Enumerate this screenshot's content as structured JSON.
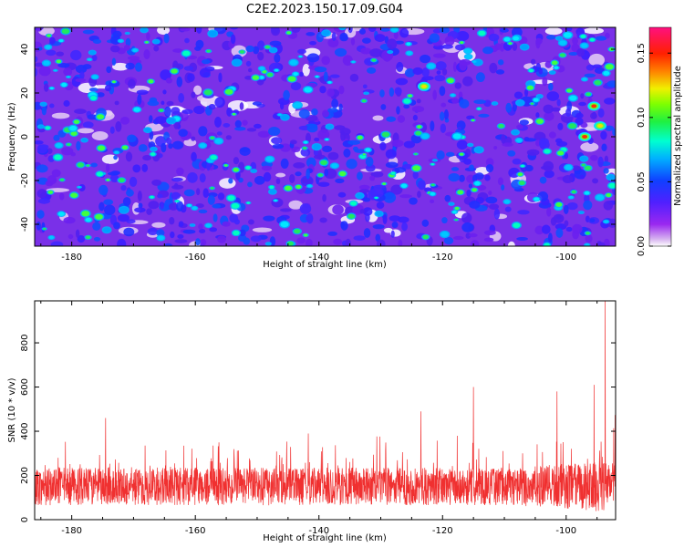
{
  "title": "C2E2.2023.150.17.09.G04",
  "chart_data": [
    {
      "type": "heatmap",
      "xlabel": "Height of straight line (km)",
      "ylabel": "Frequency (Hz)",
      "xlim": [
        -186,
        -92
      ],
      "ylim": [
        -50,
        50
      ],
      "xticks": [
        -180,
        -160,
        -140,
        -120,
        -100
      ],
      "yticks": [
        -40,
        -20,
        0,
        20,
        40
      ],
      "colorbar": {
        "label": "Normalized spectral amplitude",
        "range": [
          0.0,
          0.17
        ],
        "ticks": [
          "0.00",
          "0.05",
          "0.10",
          "0.15"
        ],
        "colormap": "rainbow (white-violet-blue-cyan-green-yellow-red-magenta)"
      },
      "hotspots": [
        {
          "x": -123,
          "y": 23,
          "value": 0.11
        },
        {
          "x": -95.5,
          "y": 14,
          "value": 0.15
        },
        {
          "x": -97,
          "y": 0,
          "value": 0.13
        },
        {
          "x": -94.5,
          "y": 5,
          "value": 0.11
        }
      ]
    },
    {
      "type": "line",
      "color": "#f03030",
      "xlabel": "Height of straight line (km)",
      "ylabel": "SNR (10 * v/v)",
      "xlim": [
        -186,
        -92
      ],
      "ylim": [
        0,
        990
      ],
      "xticks": [
        -180,
        -160,
        -140,
        -120,
        -100
      ],
      "yticks": [
        0,
        200,
        400,
        600,
        800
      ],
      "baseline_mean": 150,
      "spikes": [
        {
          "x": -174.5,
          "y": 460
        },
        {
          "x": -123.5,
          "y": 490
        },
        {
          "x": -115,
          "y": 600
        },
        {
          "x": -101.5,
          "y": 580
        },
        {
          "x": -95.5,
          "y": 610
        },
        {
          "x": -93.7,
          "y": 990
        }
      ]
    }
  ]
}
